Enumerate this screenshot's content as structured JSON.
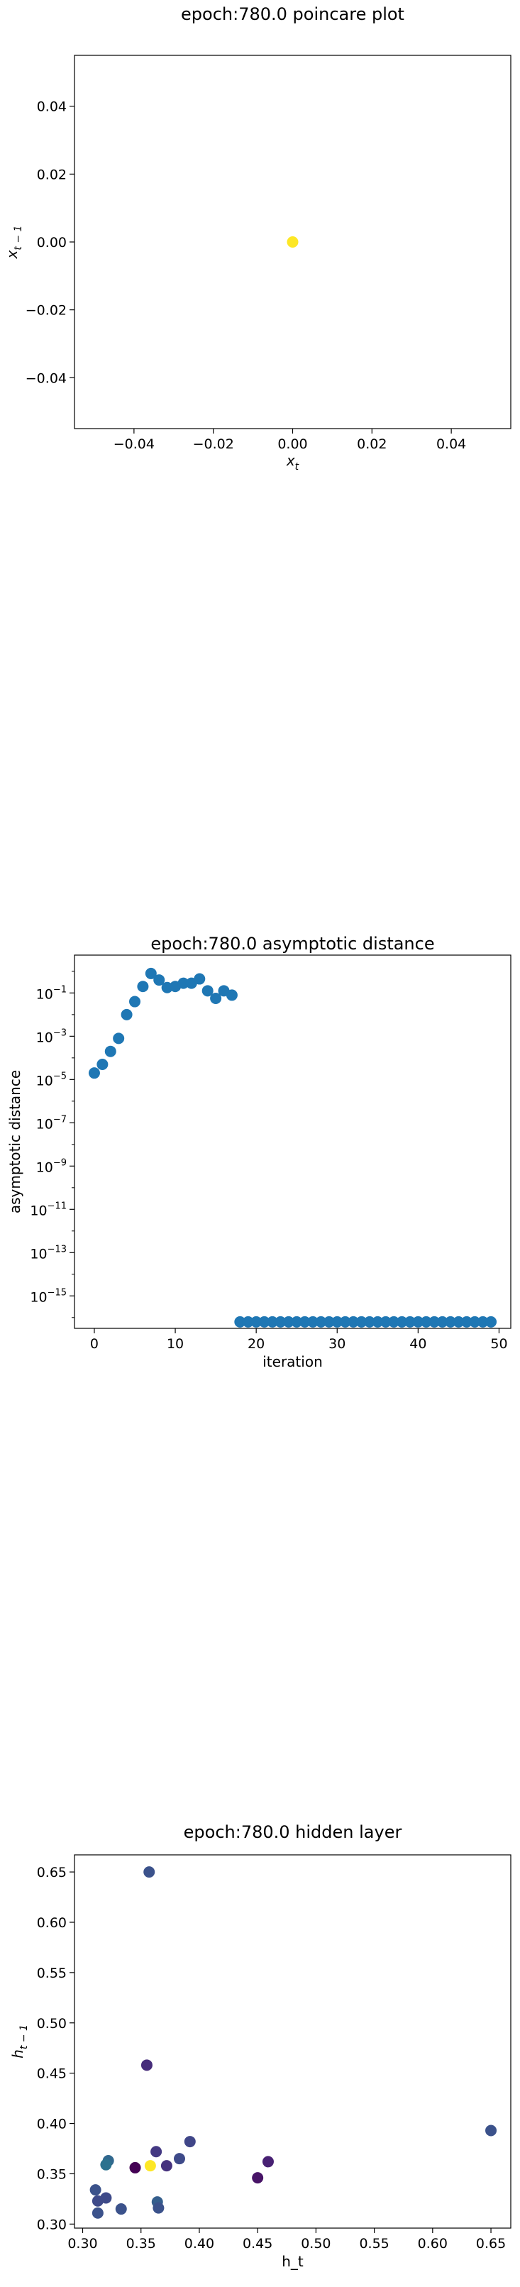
{
  "chart_data": [
    {
      "type": "scatter",
      "title": "epoch:780.0 poincare plot",
      "xlabel_main": "x",
      "xlabel_sub": "t",
      "ylabel_main": "x",
      "ylabel_sub": "t − 1",
      "xlim": [
        -0.055,
        0.055
      ],
      "ylim": [
        -0.055,
        0.055
      ],
      "xticks": [
        -0.04,
        -0.02,
        0.0,
        0.02,
        0.04
      ],
      "xtick_labels": [
        "−0.04",
        "−0.02",
        "0.00",
        "0.02",
        "0.04"
      ],
      "yticks": [
        -0.04,
        -0.02,
        0.0,
        0.02,
        0.04
      ],
      "ytick_labels": [
        "−0.04",
        "−0.02",
        "0.00",
        "0.02",
        "0.04"
      ],
      "points": [
        {
          "x": 0.0,
          "y": 0.0,
          "color": "#fde725"
        }
      ]
    },
    {
      "type": "scatter",
      "title": "epoch:780.0 asymptotic distance",
      "xlabel": "iteration",
      "ylabel": "asymptotic distance",
      "yscale": "log",
      "xlim": [
        -2.45,
        51.45
      ],
      "ylim_log10": [
        -16.5,
        0.75
      ],
      "xticks": [
        0,
        10,
        20,
        30,
        40,
        50
      ],
      "xtick_labels": [
        "0",
        "10",
        "20",
        "30",
        "40",
        "50"
      ],
      "ytick_exponents": [
        -1,
        -3,
        -5,
        -7,
        -9,
        -11,
        -13,
        -15
      ],
      "ytick_base": "10",
      "ytick_labels": [
        "−1",
        "−3",
        "−5",
        "−7",
        "−9",
        "−11",
        "−13",
        "−15"
      ],
      "color": "#1f77b4",
      "x": [
        0,
        1,
        2,
        3,
        4,
        5,
        6,
        7,
        8,
        9,
        10,
        11,
        12,
        13,
        14,
        15,
        16,
        17,
        18,
        19,
        20,
        21,
        22,
        23,
        24,
        25,
        26,
        27,
        28,
        29,
        30,
        31,
        32,
        33,
        34,
        35,
        36,
        37,
        38,
        39,
        40,
        41,
        42,
        43,
        42,
        45,
        46,
        47,
        48,
        49
      ],
      "log10_y": [
        -4.7,
        -4.3,
        -3.7,
        -3.1,
        -2.0,
        -1.4,
        -0.7,
        -0.1,
        -0.4,
        -0.75,
        -0.7,
        -0.55,
        -0.55,
        -0.35,
        -0.9,
        -1.25,
        -0.9,
        -1.1,
        -16.2,
        -16.2,
        -16.2,
        -16.2,
        -16.2,
        -16.2,
        -16.2,
        -16.2,
        -16.2,
        -16.2,
        -16.2,
        -16.2,
        -16.2,
        -16.2,
        -16.2,
        -16.2,
        -16.2,
        -16.2,
        -16.2,
        -16.2,
        -16.2,
        -16.2,
        -16.2,
        -16.2,
        -16.2,
        -16.2,
        -16.2,
        -16.2,
        -16.2,
        -16.2,
        -16.2,
        -16.2
      ]
    },
    {
      "type": "scatter",
      "title": "epoch:780.0 hidden layer",
      "xlabel": "h_t",
      "ylabel_main": "h",
      "ylabel_sub": "t − 1",
      "xlim": [
        0.293,
        0.667
      ],
      "ylim": [
        0.296,
        0.667
      ],
      "xticks": [
        0.3,
        0.35,
        0.4,
        0.45,
        0.5,
        0.55,
        0.6,
        0.65
      ],
      "xtick_labels": [
        "0.30",
        "0.35",
        "0.40",
        "0.45",
        "0.50",
        "0.55",
        "0.60",
        "0.65"
      ],
      "yticks": [
        0.3,
        0.35,
        0.4,
        0.45,
        0.5,
        0.55,
        0.6,
        0.65
      ],
      "ytick_labels": [
        "0.30",
        "0.35",
        "0.40",
        "0.45",
        "0.50",
        "0.55",
        "0.60",
        "0.65"
      ],
      "points": [
        {
          "x": 0.357,
          "y": 0.65,
          "color": "#3b528b"
        },
        {
          "x": 0.355,
          "y": 0.458,
          "color": "#472d7b"
        },
        {
          "x": 0.65,
          "y": 0.393,
          "color": "#3b528b"
        },
        {
          "x": 0.392,
          "y": 0.382,
          "color": "#404688"
        },
        {
          "x": 0.363,
          "y": 0.372,
          "color": "#443983"
        },
        {
          "x": 0.383,
          "y": 0.365,
          "color": "#3e4a89"
        },
        {
          "x": 0.459,
          "y": 0.362,
          "color": "#482173"
        },
        {
          "x": 0.322,
          "y": 0.363,
          "color": "#31688e"
        },
        {
          "x": 0.32,
          "y": 0.359,
          "color": "#2c728e"
        },
        {
          "x": 0.372,
          "y": 0.358,
          "color": "#46327e"
        },
        {
          "x": 0.358,
          "y": 0.358,
          "color": "#fde725"
        },
        {
          "x": 0.345,
          "y": 0.356,
          "color": "#440154"
        },
        {
          "x": 0.45,
          "y": 0.346,
          "color": "#481467"
        },
        {
          "x": 0.311,
          "y": 0.334,
          "color": "#3b528b"
        },
        {
          "x": 0.32,
          "y": 0.326,
          "color": "#3e4a89"
        },
        {
          "x": 0.313,
          "y": 0.323,
          "color": "#3e4a89"
        },
        {
          "x": 0.364,
          "y": 0.322,
          "color": "#355f8d"
        },
        {
          "x": 0.333,
          "y": 0.315,
          "color": "#3b528b"
        },
        {
          "x": 0.365,
          "y": 0.316,
          "color": "#3b528b"
        },
        {
          "x": 0.313,
          "y": 0.311,
          "color": "#3b528b"
        }
      ]
    }
  ]
}
